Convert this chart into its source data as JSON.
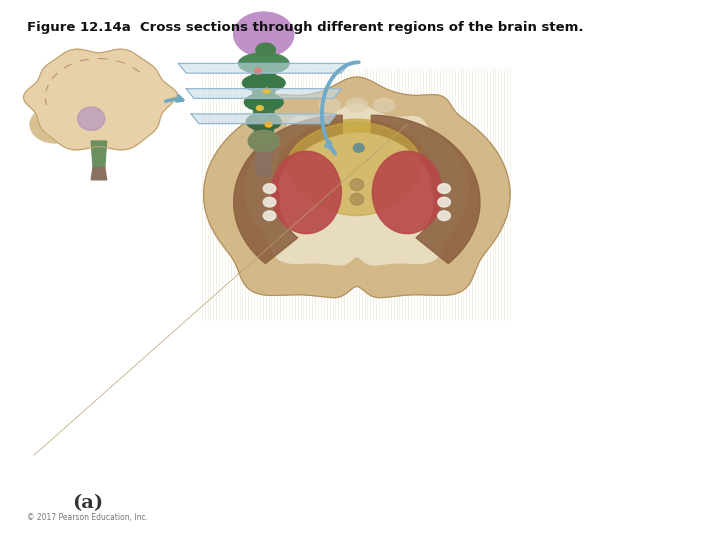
{
  "title": "Figure 12.14a  Cross sections through different regions of the brain stem.",
  "title_fontsize": 9.5,
  "background_color": "#ffffff",
  "label_a": "(a)",
  "label_a_fontsize": 14,
  "copyright_text": "© 2017 Pearson Education, Inc.",
  "copyright_fontsize": 5.5,
  "outer_tan": "#d4be98",
  "outer_edge": "#c0a878",
  "outer_ring": "#c8b080",
  "inner_cream": "#ece0c0",
  "golden_region": "#c8a848",
  "inner_light": "#e8dcc8",
  "brown_region": "#8b6040",
  "red_nucleus": "#b84848",
  "center_dot": "#6a9090",
  "white_bumps": "#e8e4d8",
  "striation": "#c8b888"
}
